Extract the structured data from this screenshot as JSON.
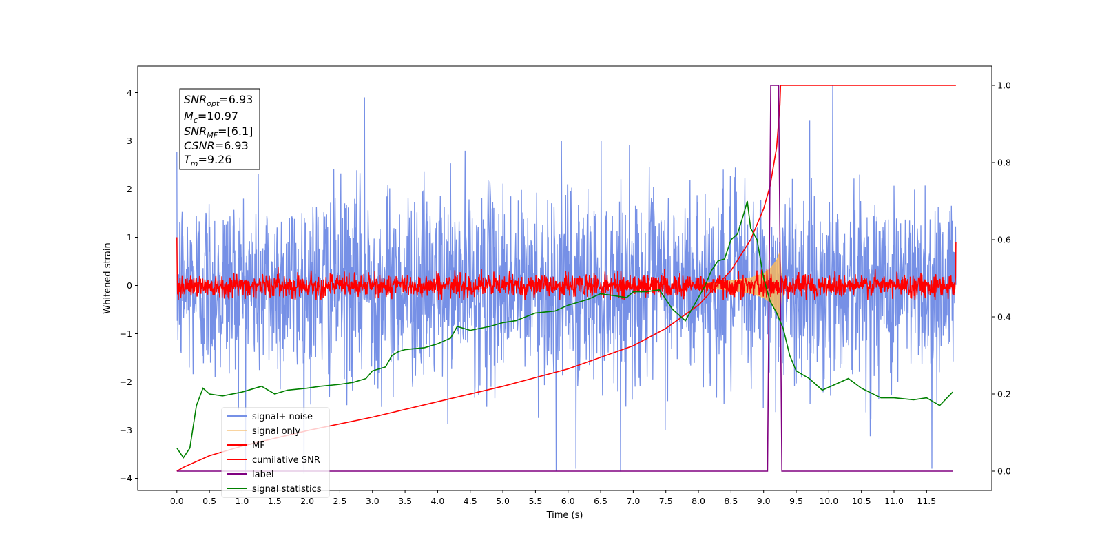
{
  "chart_data": {
    "type": "line",
    "xlabel": "Time (s)",
    "ylabel": "Whitened strain",
    "xlim": [
      -0.6,
      12.5
    ],
    "ylim": [
      -4.25,
      4.55
    ],
    "ylim_right": [
      -0.05,
      1.05
    ],
    "x_ticks": [
      "0.0",
      "0.5",
      "1.0",
      "1.5",
      "2.0",
      "2.5",
      "3.0",
      "3.5",
      "4.0",
      "4.5",
      "5.0",
      "5.5",
      "6.0",
      "6.5",
      "7.0",
      "7.5",
      "8.0",
      "8.5",
      "9.0",
      "9.5",
      "10.0",
      "10.5",
      "11.0",
      "11.5"
    ],
    "y_ticks": [
      "4",
      "3",
      "2",
      "1",
      "0",
      "−1",
      "−2",
      "−3",
      "−4"
    ],
    "y_ticks_right": [
      "1.0",
      "0.8",
      "0.6",
      "0.4",
      "0.2",
      "0.0"
    ],
    "grid": false,
    "legend_position": "lower-left",
    "annotation": {
      "snr_opt_label": "SNR",
      "snr_opt_sub": "opt",
      "snr_opt_value": "=6.93",
      "mc_label": "M",
      "mc_sub": "c",
      "mc_value": "=10.97",
      "snr_mf_label": "SNR",
      "snr_mf_sub": "MF",
      "snr_mf_value": "=[6.1]",
      "csnr_label": "CSNR",
      "csnr_value": "=6.93",
      "tm_label": "T",
      "tm_sub": "m",
      "tm_value": "=9.26"
    },
    "series": [
      {
        "name": "signal+ noise",
        "color": "#7690e6",
        "axis": "left",
        "description_values": {
          "x_range": [
            0.0,
            11.95
          ],
          "noise_sigma": 1.0,
          "spikes": [
            [
              2.88,
              3.9
            ],
            [
              10.06,
              4.15
            ],
            [
              5.82,
              -3.85
            ],
            [
              11.58,
              -3.8
            ],
            [
              6.12,
              -3.8
            ]
          ]
        }
      },
      {
        "name": "signal only",
        "color": "#f5b860",
        "axis": "left",
        "x": [
          8.1,
          8.5,
          8.8,
          9.0,
          9.1,
          9.2,
          9.25,
          9.28
        ],
        "y": [
          0.05,
          0.1,
          0.16,
          0.25,
          0.35,
          0.52,
          0.7,
          0.0
        ]
      },
      {
        "name": "MF",
        "color": "#ff0000",
        "axis": "left",
        "description_values": {
          "x_range": [
            0.0,
            11.95
          ],
          "noise_sigma": 0.12,
          "start_value": 1.0,
          "end_value": 0.9
        }
      },
      {
        "name": "cumilative SNR",
        "color": "#ff0000",
        "axis": "right",
        "x": [
          0.0,
          0.1,
          0.5,
          1.0,
          2.0,
          3.0,
          4.0,
          5.0,
          6.0,
          7.0,
          7.5,
          8.0,
          8.5,
          8.8,
          9.0,
          9.1,
          9.2,
          9.25,
          9.26,
          11.95
        ],
        "y": [
          0.0,
          0.01,
          0.04,
          0.065,
          0.105,
          0.14,
          0.18,
          0.22,
          0.265,
          0.325,
          0.37,
          0.43,
          0.52,
          0.6,
          0.68,
          0.74,
          0.84,
          0.95,
          1.0,
          1.0
        ]
      },
      {
        "name": "label",
        "color": "#800080",
        "axis": "right",
        "x": [
          0.0,
          9.06,
          9.11,
          9.23,
          9.28,
          11.9
        ],
        "y": [
          0.0,
          0.0,
          1.0,
          1.0,
          0.0,
          0.0
        ]
      },
      {
        "name": "signal statistics",
        "color": "#008000",
        "axis": "right",
        "x": [
          0.0,
          0.1,
          0.2,
          0.3,
          0.4,
          0.5,
          0.7,
          1.0,
          1.3,
          1.5,
          1.7,
          2.0,
          2.2,
          2.5,
          2.7,
          2.9,
          3.0,
          3.2,
          3.3,
          3.4,
          3.5,
          3.8,
          4.0,
          4.2,
          4.3,
          4.5,
          4.8,
          5.0,
          5.2,
          5.5,
          5.8,
          6.0,
          6.3,
          6.5,
          6.7,
          6.9,
          7.0,
          7.2,
          7.4,
          7.6,
          7.8,
          8.0,
          8.1,
          8.2,
          8.3,
          8.4,
          8.5,
          8.6,
          8.7,
          8.75,
          8.8,
          8.9,
          9.0,
          9.1,
          9.2,
          9.3,
          9.4,
          9.5,
          9.7,
          9.9,
          10.1,
          10.3,
          10.5,
          10.8,
          11.0,
          11.3,
          11.5,
          11.7,
          11.9
        ],
        "y": [
          0.06,
          0.035,
          0.06,
          0.17,
          0.215,
          0.2,
          0.195,
          0.205,
          0.22,
          0.2,
          0.21,
          0.215,
          0.22,
          0.225,
          0.23,
          0.24,
          0.26,
          0.27,
          0.3,
          0.31,
          0.315,
          0.32,
          0.33,
          0.345,
          0.375,
          0.365,
          0.375,
          0.385,
          0.39,
          0.41,
          0.415,
          0.43,
          0.445,
          0.46,
          0.455,
          0.45,
          0.465,
          0.465,
          0.47,
          0.42,
          0.39,
          0.45,
          0.48,
          0.52,
          0.545,
          0.55,
          0.6,
          0.615,
          0.67,
          0.7,
          0.63,
          0.6,
          0.5,
          0.44,
          0.41,
          0.37,
          0.3,
          0.26,
          0.24,
          0.21,
          0.225,
          0.24,
          0.215,
          0.19,
          0.19,
          0.185,
          0.19,
          0.17,
          0.205
        ]
      }
    ]
  }
}
